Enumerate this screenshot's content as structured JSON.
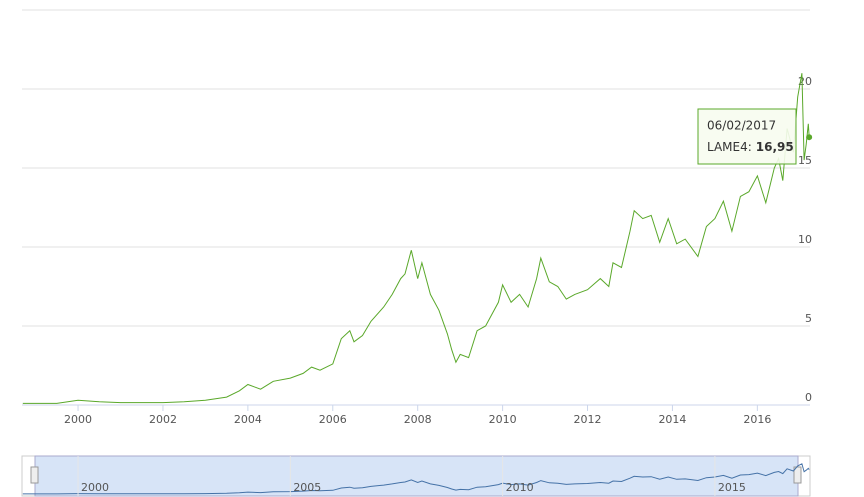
{
  "chart_data": {
    "type": "line",
    "x": [
      1998.7,
      1999.5,
      2000.0,
      2000.5,
      2001.0,
      2002.0,
      2002.5,
      2003.0,
      2003.5,
      2003.8,
      2004.0,
      2004.3,
      2004.6,
      2005.0,
      2005.3,
      2005.5,
      2005.7,
      2006.0,
      2006.2,
      2006.4,
      2006.5,
      2006.7,
      2006.9,
      2007.2,
      2007.4,
      2007.6,
      2007.7,
      2007.85,
      2008.0,
      2008.1,
      2008.3,
      2008.5,
      2008.7,
      2008.8,
      2008.9,
      2009.0,
      2009.2,
      2009.4,
      2009.6,
      2009.9,
      2010.0,
      2010.2,
      2010.4,
      2010.6,
      2010.8,
      2010.9,
      2011.1,
      2011.3,
      2011.5,
      2011.7,
      2012.0,
      2012.3,
      2012.5,
      2012.6,
      2012.8,
      2013.0,
      2013.1,
      2013.3,
      2013.5,
      2013.7,
      2013.9,
      2014.1,
      2014.3,
      2014.6,
      2014.8,
      2015.0,
      2015.2,
      2015.4,
      2015.6,
      2015.8,
      2016.0,
      2016.2,
      2016.4,
      2016.5,
      2016.6,
      2016.7,
      2016.85,
      2016.95,
      2017.05,
      2017.1,
      2017.15,
      2017.2,
      2017.22
    ],
    "series": [
      {
        "name": "LAME4",
        "color": "#5aa82a",
        "values": [
          0.1,
          0.1,
          0.3,
          0.2,
          0.15,
          0.15,
          0.2,
          0.3,
          0.5,
          0.9,
          1.3,
          1.0,
          1.5,
          1.7,
          2.0,
          2.4,
          2.2,
          2.6,
          4.2,
          4.7,
          4.0,
          4.4,
          5.3,
          6.2,
          7.0,
          8.0,
          8.3,
          9.8,
          8.0,
          9.0,
          7.0,
          6.0,
          4.5,
          3.5,
          2.7,
          3.2,
          3.0,
          4.7,
          5.0,
          6.5,
          7.6,
          6.5,
          7.0,
          6.2,
          8.0,
          9.3,
          7.8,
          7.5,
          6.7,
          7.0,
          7.3,
          8.0,
          7.5,
          9.0,
          8.7,
          11.0,
          12.3,
          11.8,
          12.0,
          10.3,
          11.8,
          10.2,
          10.5,
          9.4,
          11.3,
          11.8,
          12.9,
          11.0,
          13.2,
          13.5,
          14.5,
          12.8,
          15.0,
          15.6,
          14.2,
          17.5,
          16.0,
          19.5,
          21.0,
          15.5,
          16.5,
          17.8,
          16.95
        ]
      }
    ],
    "xlim": [
      1998.68,
      2017.24
    ],
    "xticks": [
      2000,
      2002,
      2004,
      2006,
      2008,
      2010,
      2012,
      2014,
      2016
    ],
    "ylim": [
      0,
      25
    ],
    "yticks": [
      0,
      5,
      10,
      15,
      20
    ],
    "grid": true,
    "tooltip": {
      "date": "06/02/2017",
      "label": "LAME4:",
      "value": 16.95,
      "value_label": "16,95"
    },
    "navigator": {
      "xticks": [
        2000,
        2005,
        2010,
        2015
      ]
    }
  }
}
